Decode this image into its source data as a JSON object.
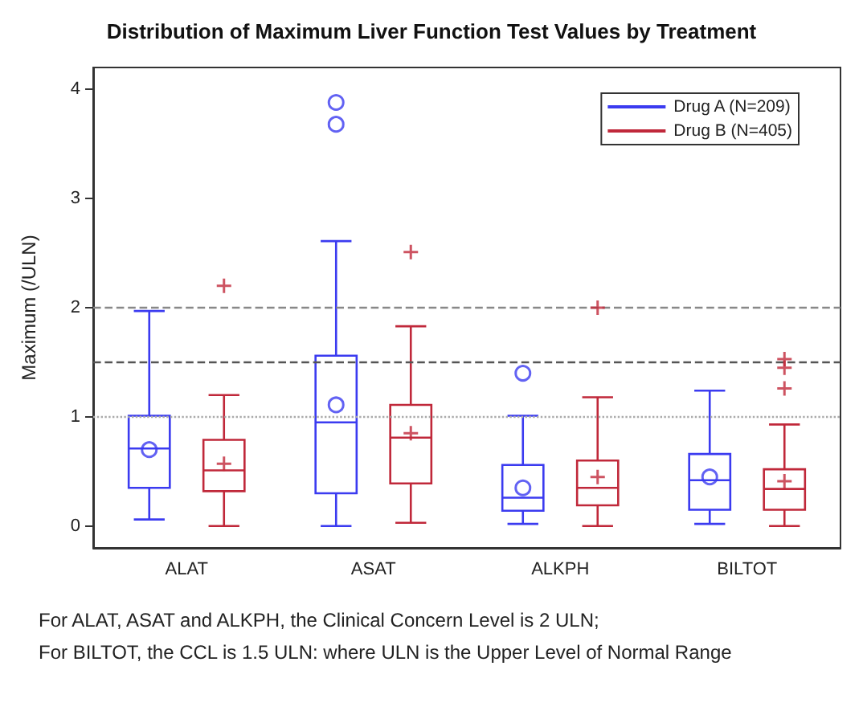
{
  "chart_data": {
    "type": "box",
    "title": "Distribution of Maximum Liver Function Test Values by Treatment",
    "ylabel": "Maximum (/ULN)",
    "categories": [
      "ALAT",
      "ASAT",
      "ALKPH",
      "BILTOT"
    ],
    "ylim": [
      -0.2,
      4.2
    ],
    "yticks": [
      0,
      1,
      2,
      3,
      4
    ],
    "grid": false,
    "legend": "top right",
    "series": [
      {
        "name": "Drug A (N=209)",
        "color": "#3b3bf0",
        "marker": "circle",
        "boxes": [
          {
            "low": 0.06,
            "q1": 0.35,
            "median": 0.71,
            "q3": 1.01,
            "high": 1.97,
            "mean": 0.7
          },
          {
            "low": 0,
            "q1": 0.3,
            "median": 0.95,
            "q3": 1.56,
            "high": 2.61,
            "mean": 1.11,
            "outliers": [
              3.68,
              3.88
            ]
          },
          {
            "low": 0.02,
            "q1": 0.14,
            "median": 0.26,
            "q3": 0.56,
            "high": 1.01,
            "mean": 0.35,
            "outliers": [
              1.4
            ]
          },
          {
            "low": 0.02,
            "q1": 0.15,
            "median": 0.42,
            "q3": 0.66,
            "high": 1.24,
            "mean": 0.45
          }
        ]
      },
      {
        "name": "Drug B (N=405)",
        "color": "#c0283a",
        "marker": "cross",
        "boxes": [
          {
            "low": 0,
            "q1": 0.32,
            "median": 0.51,
            "q3": 0.79,
            "high": 1.2,
            "mean": 0.57,
            "outliers": [
              2.2
            ]
          },
          {
            "low": 0.03,
            "q1": 0.39,
            "median": 0.81,
            "q3": 1.11,
            "high": 1.83,
            "mean": 0.85,
            "outliers": [
              2.51
            ]
          },
          {
            "low": 0,
            "q1": 0.19,
            "median": 0.35,
            "q3": 0.6,
            "high": 1.18,
            "mean": 0.45,
            "outliers": [
              2.0
            ]
          },
          {
            "low": 0,
            "q1": 0.15,
            "median": 0.34,
            "q3": 0.52,
            "high": 0.93,
            "mean": 0.41,
            "outliers": [
              1.26,
              1.45,
              1.53
            ]
          }
        ]
      }
    ],
    "ref_lines": [
      {
        "axis": "y",
        "value": 2,
        "color": "#888888",
        "line_style": "dashed"
      },
      {
        "axis": "y",
        "value": 1.5,
        "color": "#555555",
        "line_style": "dashed"
      },
      {
        "axis": "y",
        "value": 1,
        "color": "#aaaaaa",
        "line_style": "dotted"
      }
    ],
    "annotations": [
      "For ALAT, ASAT and ALKPH, the Clinical Concern Level is 2 ULN;",
      "For BILTOT, the CCL is 1.5 ULN: where ULN is the Upper Level of Normal Range"
    ]
  }
}
